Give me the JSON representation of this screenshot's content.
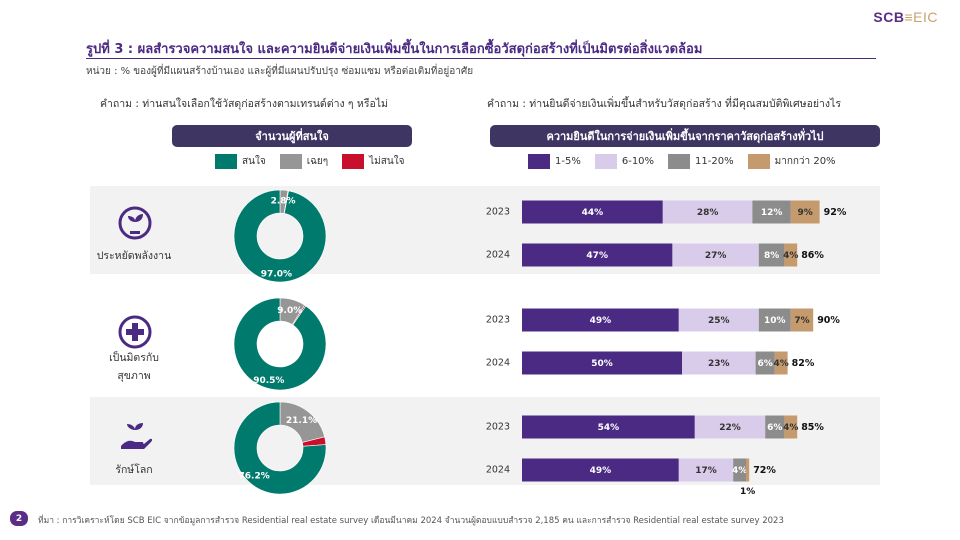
{
  "logo": {
    "main": "SCB",
    "suffix": "EIC"
  },
  "title": "รูปที่ 3 : ผลสำรวจความสนใจ และความยินดีจ่ายเงินเพิ่มขึ้นในการเลือกซื้อวัสดุก่อสร้างที่เป็นมิตรต่อสิ่งแวดล้อม",
  "subtitle": "หน่วย : % ของผู้ที่มีแผนสร้างบ้านเอง และผู้ที่มีแผนปรับปรุง ซ่อมแซม หรือต่อเติมที่อยู่อาศัย",
  "left_panel": {
    "question": "คำถาม : ท่านสนใจเลือกใช้วัสดุก่อสร้างตามเทรนด์ต่าง ๆ หรือไม่",
    "header": "จำนวนผู้ที่สนใจ",
    "legend": [
      {
        "label": "สนใจ",
        "color": "#007a6c"
      },
      {
        "label": "เฉยๆ",
        "color": "#969696"
      },
      {
        "label": "ไม่สนใจ",
        "color": "#c8102e"
      }
    ]
  },
  "right_panel": {
    "question": "คำถาม : ท่านยินดีจ่ายเงินเพิ่มขึ้นสำหรับวัสดุก่อสร้าง ที่มีคุณสมบัติพิเศษอย่างไร",
    "header": "ความยินดีในการจ่ายเงินเพิ่มขึ้นจากราคาวัสดุก่อสร้างทั่วไป",
    "legend": [
      {
        "label": "1-5%",
        "color": "#4b2a84"
      },
      {
        "label": "6-10%",
        "color": "#d9ccea"
      },
      {
        "label": "11-20%",
        "color": "#8c8c8c"
      },
      {
        "label": "มากกว่า 20%",
        "color": "#c59a6d"
      }
    ]
  },
  "categories": [
    {
      "label": "ประหยัดพลังงาน",
      "icon": "plant-plug-icon"
    },
    {
      "label": "เป็นมิตรกับ\nสุขภาพ",
      "icon": "health-cross-icon"
    },
    {
      "label": "รักษ์โลก",
      "icon": "hand-sprout-icon"
    }
  ],
  "chart_data": [
    {
      "type": "pie",
      "variant": "donut",
      "categories": [
        "ประหยัดพลังงาน",
        "เป็นมิตรกับสุขภาพ",
        "รักษ์โลก"
      ],
      "series": [
        {
          "name": "สนใจ",
          "values": [
            97.0,
            90.5,
            76.2
          ],
          "labels": [
            "97.0%",
            "90.5%",
            "76.2%"
          ]
        },
        {
          "name": "เฉยๆ",
          "values": [
            2.8,
            9.0,
            21.1
          ],
          "labels": [
            "2.8%",
            "9.0%",
            "21.1%"
          ]
        },
        {
          "name": "ไม่สนใจ",
          "values": [
            0.2,
            0.5,
            2.7
          ],
          "labels": [
            "",
            "",
            ""
          ]
        }
      ]
    },
    {
      "type": "bar",
      "orientation": "horizontal",
      "stacked": true,
      "groups": [
        "ประหยัดพลังงาน",
        "เป็นมิตรกับสุขภาพ",
        "รักษ์โลก"
      ],
      "rows": [
        {
          "year": "2023",
          "values": [
            44,
            28,
            12,
            9
          ],
          "labels": [
            "44%",
            "28%",
            "12%",
            "9%"
          ],
          "total": "92%"
        },
        {
          "year": "2024",
          "values": [
            47,
            27,
            8,
            4
          ],
          "labels": [
            "47%",
            "27%",
            "8%",
            "4%"
          ],
          "total": "86%"
        },
        {
          "year": "2023",
          "values": [
            49,
            25,
            10,
            7
          ],
          "labels": [
            "49%",
            "25%",
            "10%",
            "7%"
          ],
          "total": "90%"
        },
        {
          "year": "2024",
          "values": [
            50,
            23,
            6,
            4
          ],
          "labels": [
            "50%",
            "23%",
            "6%",
            "4%"
          ],
          "total": "82%"
        },
        {
          "year": "2023",
          "values": [
            54,
            22,
            6,
            4
          ],
          "labels": [
            "54%",
            "22%",
            "6%",
            "4%"
          ],
          "total": "85%"
        },
        {
          "year": "2024",
          "values": [
            49,
            17,
            4,
            1
          ],
          "labels": [
            "49%",
            "17%",
            "4%",
            "1%"
          ],
          "total": "72%"
        }
      ],
      "series": [
        "1-5%",
        "6-10%",
        "11-20%",
        "มากกว่า 20%"
      ],
      "xlim": [
        0,
        100
      ]
    }
  ],
  "footer": {
    "page": "2",
    "source": "ที่มา : การวิเคราะห์โดย SCB EIC จากข้อมูลการสำรวจ Residential real estate survey เดือนมีนาคม 2024 จำนวนผู้ตอบแบบสำรวจ 2,185 คน และการสำรวจ Residential real estate survey 2023"
  }
}
